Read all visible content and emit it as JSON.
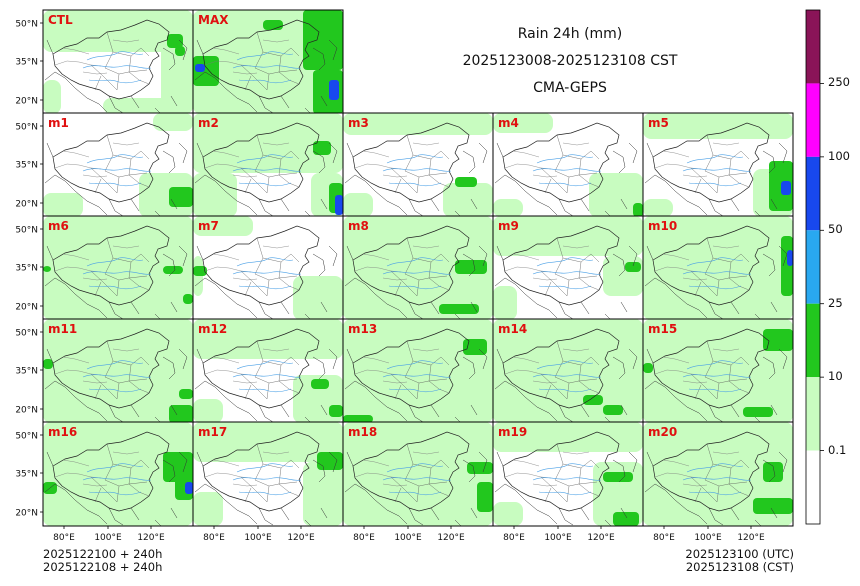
{
  "title": {
    "line1": "Rain 24h (mm)",
    "line2": "2025123008-2025123108 CST",
    "line3": "CMA-GEPS"
  },
  "footer": {
    "init_utc": "2025122100 + 240h",
    "init_cst": "2025122108 + 240h",
    "valid_utc": "2025123100 (UTC)",
    "valid_cst": "2025123108 (CST)"
  },
  "lat_ticks": [
    "50°N",
    "35°N",
    "20°N"
  ],
  "lon_ticks": [
    "80°E",
    "100°E",
    "120°E"
  ],
  "members": [
    "CTL",
    "MAX",
    "m1",
    "m2",
    "m3",
    "m4",
    "m5",
    "m6",
    "m7",
    "m8",
    "m9",
    "m10",
    "m11",
    "m12",
    "m13",
    "m14",
    "m15",
    "m16",
    "m17",
    "m18",
    "m19",
    "m20"
  ],
  "colorbar": {
    "levels": [
      "0.1",
      "10",
      "25",
      "50",
      "100",
      "250"
    ],
    "colors": [
      "#ffffff",
      "#c8fcc0",
      "#22c71e",
      "#29a8f0",
      "#1848ee",
      "#ff00ff",
      "#8a1458"
    ]
  },
  "colors": {
    "member_label": "#e01010",
    "land_light": "#c8fcc0",
    "rain_green": "#22c71e",
    "rain_blue": "#29a8f0",
    "rain_darkblue": "#1848ee",
    "river": "#4aa0e6",
    "border": "#555555"
  }
}
